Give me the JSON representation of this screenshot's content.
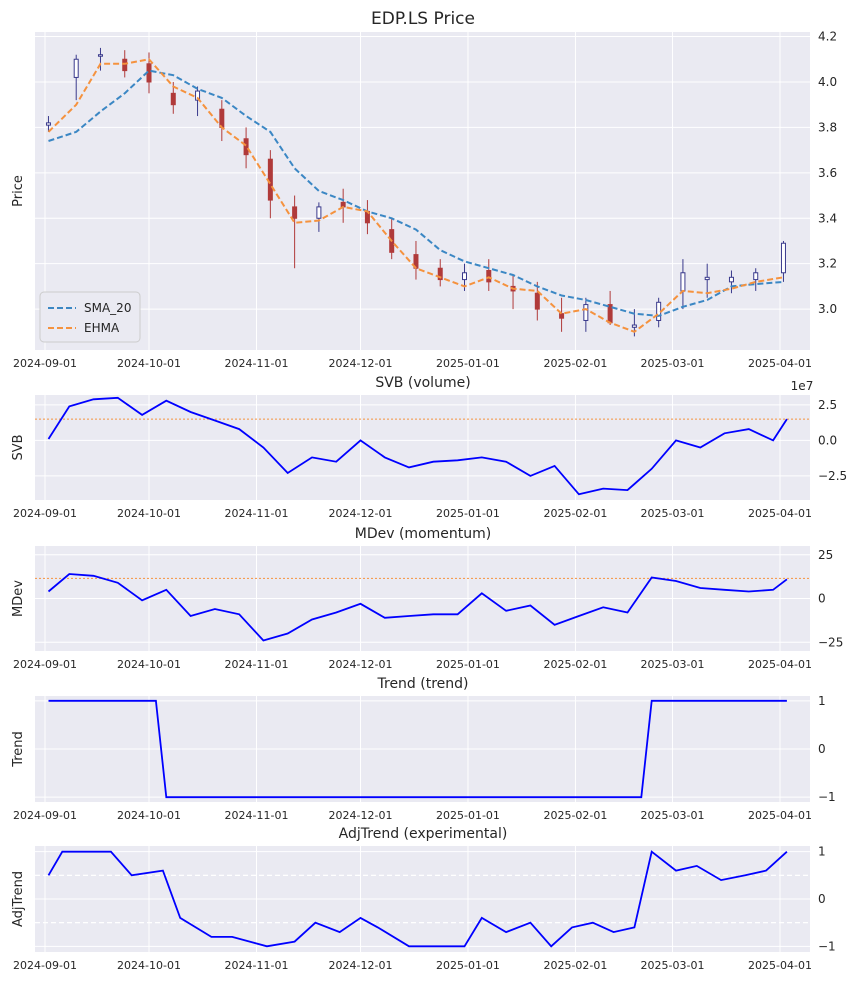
{
  "chart_data": [
    {
      "type": "candlestick",
      "title": "EDP.LS Price",
      "ylabel": "Price",
      "ylim": [
        2.82,
        4.22
      ],
      "yticks": [
        "4.2",
        "4.0",
        "3.8",
        "3.6",
        "3.4",
        "3.2",
        "3.0"
      ],
      "x_tick_labels": [
        "2024-09-01",
        "2024-10-01",
        "2024-11-01",
        "2024-12-01",
        "2025-01-01",
        "2025-02-01",
        "2025-03-01",
        "2025-04-01"
      ],
      "legend": {
        "placement": "lower-left",
        "entries": [
          "SMA_20",
          "EHMA"
        ]
      },
      "colors": {
        "up": "#3a3a8c",
        "down": "#b03a3a",
        "sma": "#3b87c4",
        "ehma": "#f5923e"
      },
      "x": [
        "2024-09-02",
        "2024-09-10",
        "2024-09-17",
        "2024-09-24",
        "2024-10-01",
        "2024-10-08",
        "2024-10-15",
        "2024-10-22",
        "2024-10-29",
        "2024-11-05",
        "2024-11-12",
        "2024-11-19",
        "2024-11-26",
        "2024-12-03",
        "2024-12-10",
        "2024-12-17",
        "2024-12-24",
        "2024-12-31",
        "2025-01-07",
        "2025-01-14",
        "2025-01-21",
        "2025-01-28",
        "2025-02-04",
        "2025-02-11",
        "2025-02-18",
        "2025-02-25",
        "2025-03-04",
        "2025-03-11",
        "2025-03-18",
        "2025-03-25",
        "2025-04-02"
      ],
      "open": [
        3.81,
        4.02,
        4.12,
        4.1,
        4.08,
        3.95,
        3.92,
        3.88,
        3.75,
        3.66,
        3.45,
        3.4,
        3.47,
        3.43,
        3.35,
        3.24,
        3.18,
        3.13,
        3.17,
        3.1,
        3.07,
        2.98,
        2.95,
        3.02,
        2.92,
        2.95,
        3.08,
        3.13,
        3.12,
        3.13,
        3.16
      ],
      "high": [
        3.85,
        4.12,
        4.15,
        4.14,
        4.13,
        4.0,
        3.98,
        3.92,
        3.8,
        3.7,
        3.5,
        3.47,
        3.53,
        3.48,
        3.4,
        3.3,
        3.22,
        3.2,
        3.22,
        3.15,
        3.12,
        3.05,
        3.05,
        3.08,
        3.0,
        3.05,
        3.22,
        3.2,
        3.17,
        3.18,
        3.3
      ],
      "low": [
        3.78,
        3.92,
        4.05,
        4.02,
        3.95,
        3.86,
        3.85,
        3.74,
        3.62,
        3.4,
        3.18,
        3.34,
        3.38,
        3.33,
        3.22,
        3.13,
        3.1,
        3.08,
        3.08,
        3.0,
        2.95,
        2.9,
        2.9,
        2.93,
        2.88,
        2.92,
        3.0,
        3.05,
        3.07,
        3.08,
        3.12
      ],
      "close": [
        3.82,
        4.1,
        4.12,
        4.05,
        4.0,
        3.9,
        3.96,
        3.8,
        3.68,
        3.48,
        3.4,
        3.45,
        3.45,
        3.38,
        3.25,
        3.18,
        3.13,
        3.16,
        3.12,
        3.08,
        3.0,
        2.96,
        3.02,
        2.94,
        2.93,
        3.03,
        3.16,
        3.14,
        3.14,
        3.16,
        3.29
      ],
      "series": [
        {
          "name": "SMA_20",
          "values": [
            3.74,
            3.78,
            3.87,
            3.95,
            4.05,
            4.03,
            3.97,
            3.93,
            3.85,
            3.78,
            3.62,
            3.52,
            3.48,
            3.43,
            3.4,
            3.35,
            3.26,
            3.21,
            3.18,
            3.15,
            3.1,
            3.06,
            3.04,
            3.01,
            2.98,
            2.97,
            3.01,
            3.04,
            3.1,
            3.11,
            3.12
          ]
        },
        {
          "name": "EHMA",
          "values": [
            3.78,
            3.9,
            4.08,
            4.08,
            4.1,
            3.98,
            3.93,
            3.8,
            3.72,
            3.55,
            3.38,
            3.39,
            3.45,
            3.43,
            3.3,
            3.18,
            3.14,
            3.1,
            3.14,
            3.09,
            3.08,
            2.98,
            3.0,
            2.94,
            2.9,
            2.98,
            3.08,
            3.07,
            3.09,
            3.12,
            3.14
          ]
        }
      ]
    },
    {
      "type": "line",
      "title": "SVB (volume)",
      "ylabel": "SVB",
      "ylim": [
        -4.2,
        3.2
      ],
      "yticks": [
        "2.5",
        "0.0",
        "−2.5"
      ],
      "offset_label": "1e7",
      "threshold": 1.5,
      "x_tick_labels": [
        "2024-09-01",
        "2024-10-01",
        "2024-11-01",
        "2024-12-01",
        "2025-01-01",
        "2025-02-01",
        "2025-03-01",
        "2025-04-01"
      ],
      "x": [
        "2024-09-02",
        "2024-09-08",
        "2024-09-15",
        "2024-09-22",
        "2024-09-29",
        "2024-10-06",
        "2024-10-13",
        "2024-10-20",
        "2024-10-27",
        "2024-11-03",
        "2024-11-10",
        "2024-11-17",
        "2024-11-24",
        "2024-12-01",
        "2024-12-08",
        "2024-12-15",
        "2024-12-22",
        "2024-12-29",
        "2025-01-05",
        "2025-01-12",
        "2025-01-19",
        "2025-01-26",
        "2025-02-02",
        "2025-02-09",
        "2025-02-16",
        "2025-02-23",
        "2025-03-02",
        "2025-03-09",
        "2025-03-16",
        "2025-03-23",
        "2025-03-30",
        "2025-04-03"
      ],
      "values": [
        0.1,
        2.4,
        2.9,
        3.0,
        1.8,
        2.8,
        2.0,
        1.4,
        0.8,
        -0.5,
        -2.3,
        -1.2,
        -1.5,
        0.0,
        -1.2,
        -1.9,
        -1.5,
        -1.4,
        -1.2,
        -1.5,
        -2.5,
        -1.8,
        -3.8,
        -3.4,
        -3.5,
        -2.0,
        0.0,
        -0.5,
        0.5,
        0.8,
        0.0,
        1.5
      ]
    },
    {
      "type": "line",
      "title": "MDev (momentum)",
      "ylabel": "MDev",
      "ylim": [
        -30,
        30
      ],
      "yticks": [
        "25",
        "0",
        "−25"
      ],
      "threshold": 11.5,
      "x_tick_labels": [
        "2024-09-01",
        "2024-10-01",
        "2024-11-01",
        "2024-12-01",
        "2025-01-01",
        "2025-02-01",
        "2025-03-01",
        "2025-04-01"
      ],
      "x": [
        "2024-09-02",
        "2024-09-08",
        "2024-09-15",
        "2024-09-22",
        "2024-09-29",
        "2024-10-06",
        "2024-10-13",
        "2024-10-20",
        "2024-10-27",
        "2024-11-03",
        "2024-11-10",
        "2024-11-17",
        "2024-11-24",
        "2024-12-01",
        "2024-12-08",
        "2024-12-15",
        "2024-12-22",
        "2024-12-29",
        "2025-01-05",
        "2025-01-12",
        "2025-01-19",
        "2025-01-26",
        "2025-02-02",
        "2025-02-09",
        "2025-02-16",
        "2025-02-23",
        "2025-03-02",
        "2025-03-09",
        "2025-03-16",
        "2025-03-23",
        "2025-03-30",
        "2025-04-03"
      ],
      "values": [
        4,
        14,
        13,
        9,
        -1,
        5,
        -10,
        -6,
        -9,
        -24,
        -20,
        -12,
        -8,
        -3,
        -11,
        -10,
        -9,
        -9,
        3,
        -7,
        -4,
        -15,
        -10,
        -5,
        -8,
        12,
        10,
        6,
        5,
        4,
        5,
        11
      ]
    },
    {
      "type": "line",
      "title": "Trend (trend)",
      "ylabel": "Trend",
      "ylim": [
        -1.1,
        1.1
      ],
      "yticks": [
        "1",
        "0",
        "−1"
      ],
      "x_tick_labels": [
        "2024-09-01",
        "2024-10-01",
        "2024-11-01",
        "2024-12-01",
        "2025-01-01",
        "2025-02-01",
        "2025-03-01",
        "2025-04-01"
      ],
      "x": [
        "2024-09-02",
        "2024-10-03",
        "2024-10-06",
        "2025-02-20",
        "2025-02-23",
        "2025-04-03"
      ],
      "values": [
        1,
        1,
        -1,
        -1,
        1,
        1
      ]
    },
    {
      "type": "line",
      "title": "AdjTrend (experimental)",
      "ylabel": "AdjTrend",
      "ylim": [
        -1.12,
        1.12
      ],
      "yticks": [
        "1",
        "0",
        "−1"
      ],
      "reference_lines": [
        0.5,
        -0.5
      ],
      "x_tick_labels": [
        "2024-09-01",
        "2024-10-01",
        "2024-11-01",
        "2024-12-01",
        "2025-01-01",
        "2025-02-01",
        "2025-03-01",
        "2025-04-01"
      ],
      "x": [
        "2024-09-02",
        "2024-09-06",
        "2024-09-20",
        "2024-09-26",
        "2024-10-05",
        "2024-10-10",
        "2024-10-19",
        "2024-10-25",
        "2024-11-04",
        "2024-11-12",
        "2024-11-18",
        "2024-11-25",
        "2024-12-01",
        "2024-12-06",
        "2024-12-15",
        "2024-12-21",
        "2024-12-31",
        "2025-01-05",
        "2025-01-12",
        "2025-01-19",
        "2025-01-25",
        "2025-01-31",
        "2025-02-06",
        "2025-02-12",
        "2025-02-18",
        "2025-02-23",
        "2025-03-02",
        "2025-03-08",
        "2025-03-15",
        "2025-03-22",
        "2025-03-28",
        "2025-04-03"
      ],
      "values": [
        0.5,
        1,
        1,
        0.5,
        0.6,
        -0.4,
        -0.8,
        -0.8,
        -1,
        -0.9,
        -0.5,
        -0.7,
        -0.4,
        -0.6,
        -1,
        -1,
        -1,
        -0.4,
        -0.7,
        -0.5,
        -1,
        -0.6,
        -0.5,
        -0.7,
        -0.6,
        1,
        0.6,
        0.7,
        0.4,
        0.5,
        0.6,
        1
      ]
    }
  ]
}
